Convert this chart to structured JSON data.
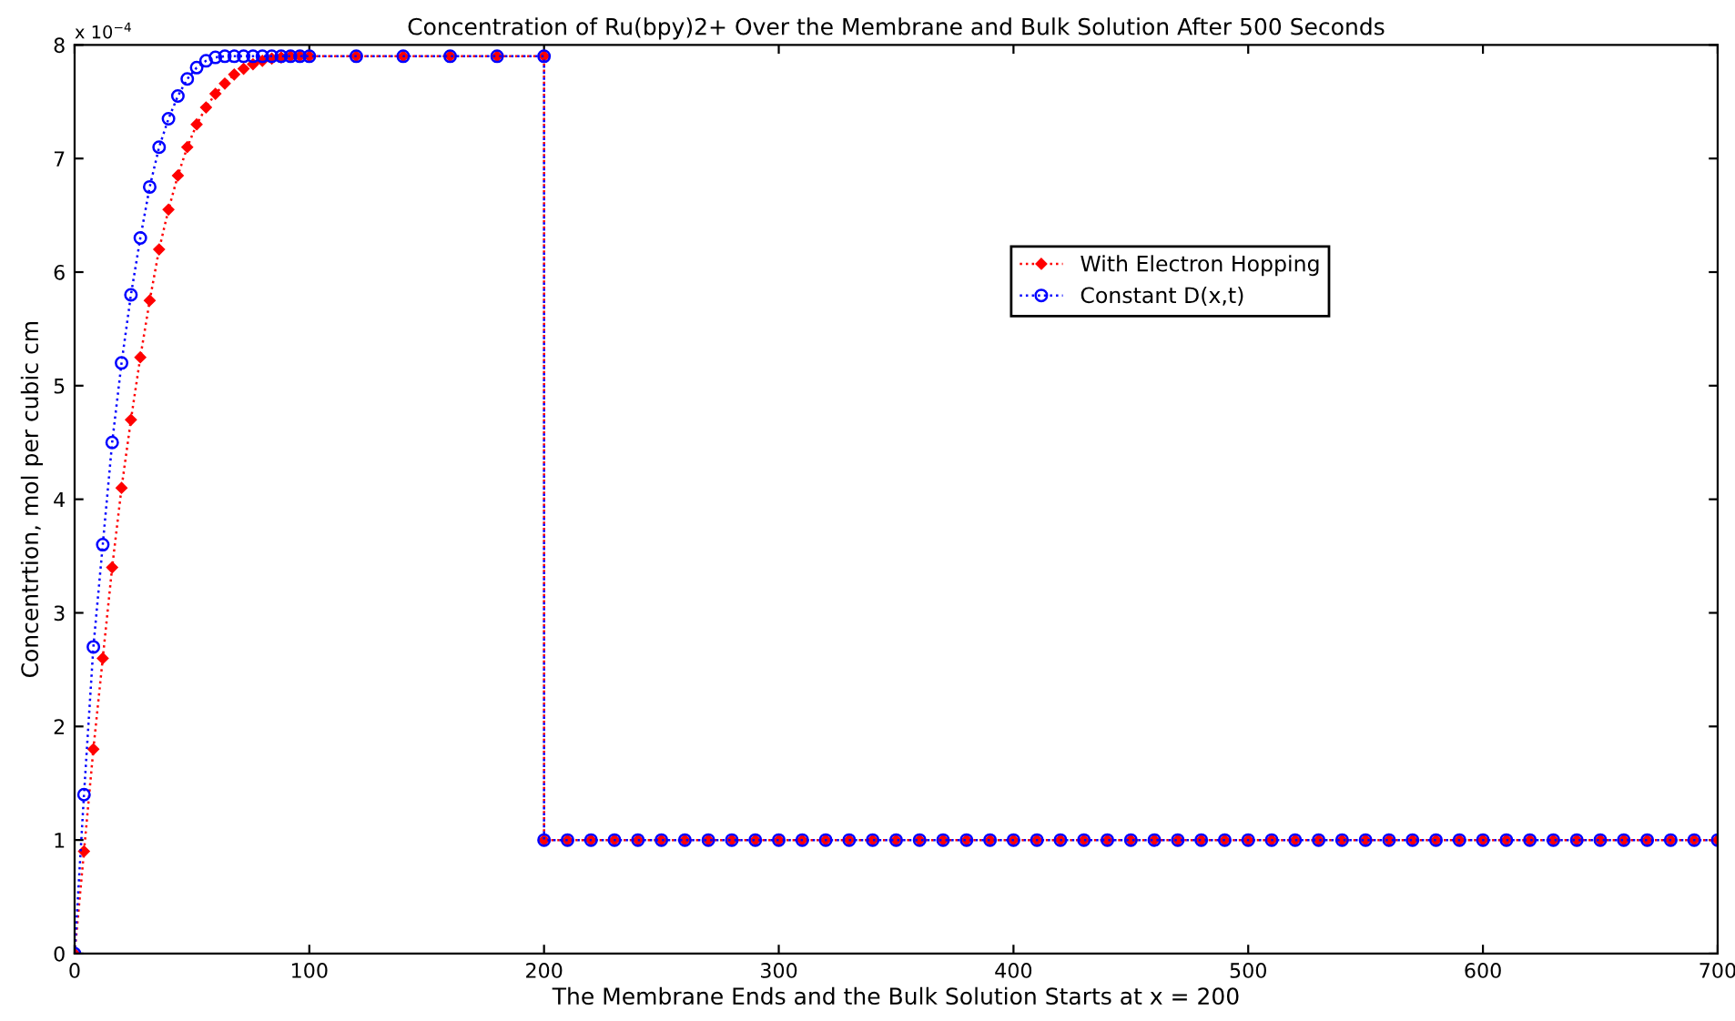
{
  "chart_data": {
    "type": "line",
    "title": "Concentration of Ru(bpy)2+ Over the Membrane and Bulk Solution After 500 Seconds",
    "xlabel": "The Membrane Ends and the Bulk Solution Starts at x = 200",
    "ylabel": "Concentrtion, mol per cubic cm",
    "annotations": [
      "x 10$^{−4}$"
    ],
    "xlim": [
      0,
      700
    ],
    "xticks": [
      0,
      100,
      200,
      300,
      400,
      500,
      600,
      700
    ],
    "ylim": [
      0,
      8
    ],
    "yticks": [
      0,
      1,
      2,
      3,
      4,
      5,
      6,
      7,
      8
    ],
    "grid": false,
    "legend": "right",
    "line_style": "dotted",
    "series": [
      {
        "name": "With Electron Hopping",
        "color": "#ff0000",
        "marker": "diamond",
        "x": [
          0,
          4,
          8,
          12,
          16,
          20,
          24,
          28,
          32,
          36,
          40,
          44,
          48,
          52,
          56,
          60,
          64,
          68,
          72,
          76,
          80,
          84,
          88,
          92,
          96,
          100,
          120,
          140,
          160,
          180,
          200,
          200,
          210,
          220,
          230,
          240,
          250,
          260,
          270,
          280,
          290,
          300,
          310,
          320,
          330,
          340,
          350,
          360,
          370,
          380,
          390,
          400,
          410,
          420,
          430,
          440,
          450,
          460,
          470,
          480,
          490,
          500,
          510,
          520,
          530,
          540,
          550,
          560,
          570,
          580,
          590,
          600,
          610,
          620,
          630,
          640,
          650,
          660,
          670,
          680,
          690,
          700
        ],
        "values": [
          0,
          0.9,
          1.8,
          2.6,
          3.4,
          4.1,
          4.7,
          5.25,
          5.75,
          6.2,
          6.55,
          6.85,
          7.1,
          7.3,
          7.45,
          7.57,
          7.66,
          7.74,
          7.79,
          7.83,
          7.86,
          7.88,
          7.89,
          7.9,
          7.9,
          7.9,
          7.9,
          7.9,
          7.9,
          7.9,
          7.9,
          1,
          1,
          1,
          1,
          1,
          1,
          1,
          1,
          1,
          1,
          1,
          1,
          1,
          1,
          1,
          1,
          1,
          1,
          1,
          1,
          1,
          1,
          1,
          1,
          1,
          1,
          1,
          1,
          1,
          1,
          1,
          1,
          1,
          1,
          1,
          1,
          1,
          1,
          1,
          1,
          1,
          1,
          1,
          1,
          1,
          1,
          1,
          1,
          1,
          1,
          1
        ]
      },
      {
        "name": "Constant D(x,t)",
        "color": "#0000ff",
        "marker": "circle",
        "x": [
          0,
          4,
          8,
          12,
          16,
          20,
          24,
          28,
          32,
          36,
          40,
          44,
          48,
          52,
          56,
          60,
          64,
          68,
          72,
          76,
          80,
          84,
          88,
          92,
          96,
          100,
          120,
          140,
          160,
          180,
          200,
          200,
          210,
          220,
          230,
          240,
          250,
          260,
          270,
          280,
          290,
          300,
          310,
          320,
          330,
          340,
          350,
          360,
          370,
          380,
          390,
          400,
          410,
          420,
          430,
          440,
          450,
          460,
          470,
          480,
          490,
          500,
          510,
          520,
          530,
          540,
          550,
          560,
          570,
          580,
          590,
          600,
          610,
          620,
          630,
          640,
          650,
          660,
          670,
          680,
          690,
          700
        ],
        "values": [
          0,
          1.4,
          2.7,
          3.6,
          4.5,
          5.2,
          5.8,
          6.3,
          6.75,
          7.1,
          7.35,
          7.55,
          7.7,
          7.8,
          7.86,
          7.89,
          7.9,
          7.9,
          7.9,
          7.9,
          7.9,
          7.9,
          7.9,
          7.9,
          7.9,
          7.9,
          7.9,
          7.9,
          7.9,
          7.9,
          7.9,
          1,
          1,
          1,
          1,
          1,
          1,
          1,
          1,
          1,
          1,
          1,
          1,
          1,
          1,
          1,
          1,
          1,
          1,
          1,
          1,
          1,
          1,
          1,
          1,
          1,
          1,
          1,
          1,
          1,
          1,
          1,
          1,
          1,
          1,
          1,
          1,
          1,
          1,
          1,
          1,
          1,
          1,
          1,
          1,
          1,
          1,
          1,
          1,
          1,
          1,
          1
        ]
      }
    ]
  }
}
